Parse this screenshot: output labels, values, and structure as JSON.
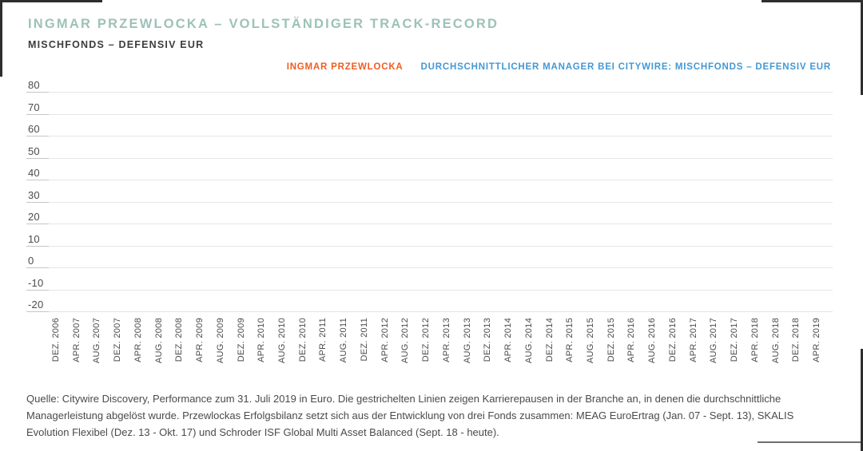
{
  "header": {
    "title": "INGMAR PRZEWLOCKA – VOLLSTÄNDIGER TRACK-RECORD",
    "subtitle": "MISCHFONDS – DEFENSIV EUR"
  },
  "legend": {
    "items": [
      {
        "label": "INGMAR PRZEWLOCKA",
        "color": "#f15c22"
      },
      {
        "label": "DURCHSCHNITTLICHER MANAGER BEI CITYWIRE: MISCHFONDS – DEFENSIV EUR",
        "color": "#4598d3"
      }
    ]
  },
  "chart_data": {
    "type": "line",
    "title": "INGMAR PRZEWLOCKA – VOLLSTÄNDIGER TRACK-RECORD",
    "subtitle": "MISCHFONDS – DEFENSIV EUR",
    "x_categories": [
      "DEZ. 2006",
      "APR. 2007",
      "AUG. 2007",
      "DEZ. 2007",
      "APR. 2008",
      "AUG. 2008",
      "DEZ. 2008",
      "APR. 2009",
      "AUG. 2009",
      "DEZ. 2009",
      "APR. 2010",
      "AUG. 2010",
      "DEZ. 2010",
      "APR. 2011",
      "AUG. 2011",
      "DEZ. 2011",
      "APR. 2012",
      "AUG. 2012",
      "DEZ. 2012",
      "APR. 2013",
      "AUG. 2013",
      "DEZ. 2013",
      "APR. 2014",
      "AUG. 2014",
      "DEZ. 2014",
      "APR. 2015",
      "AUG. 2015",
      "DEZ. 2015",
      "APR. 2016",
      "AUG. 2016",
      "DEZ. 2016",
      "APR. 2017",
      "AUG. 2017",
      "DEZ. 2017",
      "APR. 2018",
      "AUG. 2018",
      "DEZ. 2018",
      "APR. 2019"
    ],
    "y_ticks": [
      80,
      70,
      60,
      50,
      40,
      30,
      20,
      10,
      0,
      -10,
      -20
    ],
    "ylim": [
      -20,
      80
    ],
    "xlabel": "",
    "ylabel": "",
    "grid": true,
    "legend_position": "top-right",
    "series": [
      {
        "name": "INGMAR PRZEWLOCKA",
        "color": "#f15c22",
        "values": []
      },
      {
        "name": "DURCHSCHNITTLICHER MANAGER BEI CITYWIRE: MISCHFONDS – DEFENSIV EUR",
        "color": "#4598d3",
        "values": []
      }
    ]
  },
  "footer": {
    "source_text": "Quelle: Citywire Discovery, Performance zum 31. Juli 2019 in Euro. Die gestrichelten Linien zeigen Karrierepausen in der Branche an, in denen die durchschnittliche Managerleistung abgelöst wurde. Przewlockas Erfolgsbilanz setzt sich aus der Entwicklung von drei Fonds zusammen: MEAG EuroErtrag (Jan. 07 - Sept. 13), SKALIS Evolution Flexibel (Dez. 13 - Okt. 17) und Schroder ISF Global Multi Asset Balanced (Sept. 18 - heute)."
  },
  "colors": {
    "title": "#9cc2b8",
    "subtitle": "#3d3d3b",
    "accent_orange": "#f15c22",
    "accent_blue": "#4598d3",
    "gridline": "#e6e6e6",
    "grid_tick": "#c6c6c6",
    "axis_text": "#4b4b4b",
    "border_fragment": "#2e2e2e"
  }
}
